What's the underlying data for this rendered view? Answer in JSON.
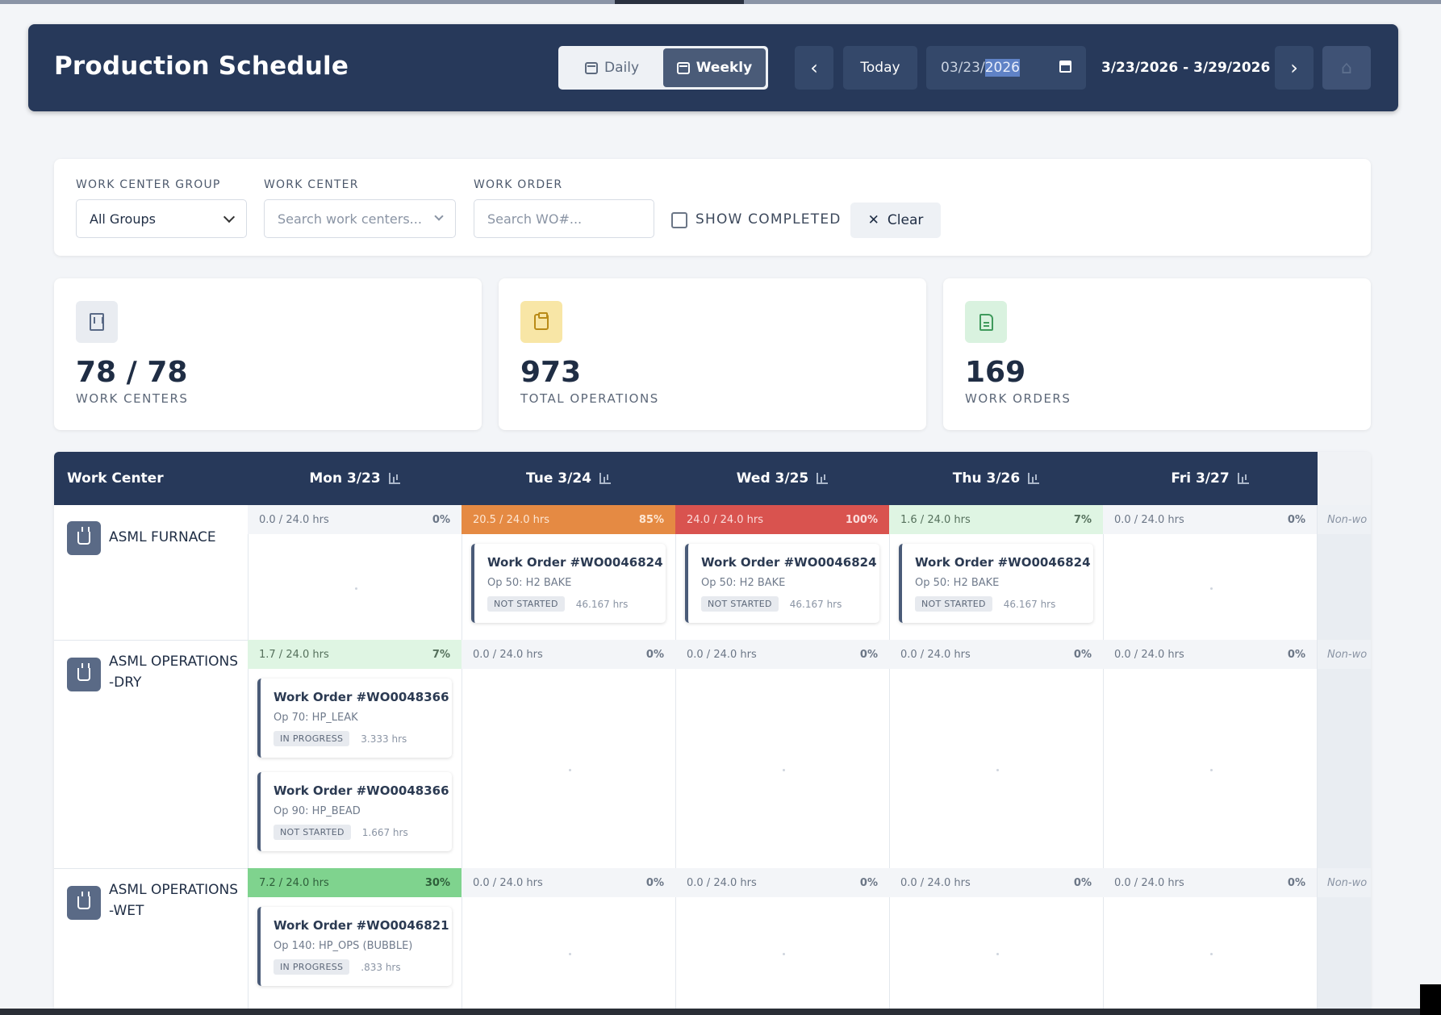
{
  "header": {
    "title": "Production Schedule",
    "view_daily": "Daily",
    "view_weekly": "Weekly",
    "prev_icon": "‹",
    "today": "Today",
    "date_prefix": "03/23/",
    "date_selected": "2026",
    "range": "3/23/2026 - 3/29/2026",
    "next_icon": "›",
    "home_icon": "⌂"
  },
  "filters": {
    "group_label": "WORK CENTER GROUP",
    "group_value": "All Groups",
    "center_label": "WORK CENTER",
    "center_placeholder": "Search work centers...",
    "order_label": "WORK ORDER",
    "order_placeholder": "Search WO#...",
    "show_completed": "SHOW COMPLETED",
    "clear": "Clear",
    "clear_icon": "✕"
  },
  "stats": [
    {
      "value": "78 / 78",
      "label": "WORK CENTERS",
      "icon": "building-icon",
      "bg": "#e9ecf1"
    },
    {
      "value": "973",
      "label": "TOTAL OPERATIONS",
      "icon": "clipboard-icon",
      "bg": "#f8e6a6"
    },
    {
      "value": "169",
      "label": "WORK ORDERS",
      "icon": "document-icon",
      "bg": "#d9f2df"
    }
  ],
  "grid": {
    "col_work_center": "Work Center",
    "days": [
      "Mon 3/23",
      "Tue 3/24",
      "Wed 3/25",
      "Thu 3/26",
      "Fri 3/27"
    ],
    "non_working": "Non-wo",
    "rows": [
      {
        "name": "ASML FURNACE",
        "caps": [
          {
            "text": "0.0 / 24.0 hrs",
            "pct": "0%",
            "kind": "neutral"
          },
          {
            "text": "20.5 / 24.0 hrs",
            "pct": "85%",
            "kind": "orange"
          },
          {
            "text": "24.0 / 24.0 hrs",
            "pct": "100%",
            "kind": "red"
          },
          {
            "text": "1.6 / 24.0 hrs",
            "pct": "7%",
            "kind": "lightgreen"
          },
          {
            "text": "0.0 / 24.0 hrs",
            "pct": "0%",
            "kind": "neutral"
          }
        ],
        "orders": [
          {
            "day": 1,
            "slot": 0,
            "title": "Work Order #WO0046824",
            "op": "Op 50: H2 BAKE",
            "status": "NOT STARTED",
            "hrs": "46.167 hrs"
          },
          {
            "day": 2,
            "slot": 0,
            "title": "Work Order #WO0046824",
            "op": "Op 50: H2 BAKE",
            "status": "NOT STARTED",
            "hrs": "46.167 hrs"
          },
          {
            "day": 3,
            "slot": 0,
            "title": "Work Order #WO0046824",
            "op": "Op 50: H2 BAKE",
            "status": "NOT STARTED",
            "hrs": "46.167 hrs"
          }
        ]
      },
      {
        "name": "ASML OPERATIONS -DRY",
        "caps": [
          {
            "text": "1.7 / 24.0 hrs",
            "pct": "7%",
            "kind": "lightgreen"
          },
          {
            "text": "0.0 / 24.0 hrs",
            "pct": "0%",
            "kind": "neutral"
          },
          {
            "text": "0.0 / 24.0 hrs",
            "pct": "0%",
            "kind": "neutral"
          },
          {
            "text": "0.0 / 24.0 hrs",
            "pct": "0%",
            "kind": "neutral"
          },
          {
            "text": "0.0 / 24.0 hrs",
            "pct": "0%",
            "kind": "neutral"
          }
        ],
        "orders": [
          {
            "day": 0,
            "slot": 0,
            "title": "Work Order #WO0048366",
            "op": "Op 70: HP_LEAK",
            "status": "IN PROGRESS",
            "hrs": "3.333 hrs"
          },
          {
            "day": 0,
            "slot": 1,
            "title": "Work Order #WO0048366",
            "op": "Op 90: HP_BEAD",
            "status": "NOT STARTED",
            "hrs": "1.667 hrs"
          }
        ]
      },
      {
        "name": "ASML OPERATIONS -WET",
        "caps": [
          {
            "text": "7.2 / 24.0 hrs",
            "pct": "30%",
            "kind": "green"
          },
          {
            "text": "0.0 / 24.0 hrs",
            "pct": "0%",
            "kind": "neutral"
          },
          {
            "text": "0.0 / 24.0 hrs",
            "pct": "0%",
            "kind": "neutral"
          },
          {
            "text": "0.0 / 24.0 hrs",
            "pct": "0%",
            "kind": "neutral"
          },
          {
            "text": "0.0 / 24.0 hrs",
            "pct": "0%",
            "kind": "neutral"
          }
        ],
        "orders": [
          {
            "day": 0,
            "slot": 0,
            "title": "Work Order #WO0046821",
            "op": "Op 140: HP_OPS (BUBBLE)",
            "status": "IN PROGRESS",
            "hrs": ".833 hrs"
          }
        ]
      }
    ]
  }
}
